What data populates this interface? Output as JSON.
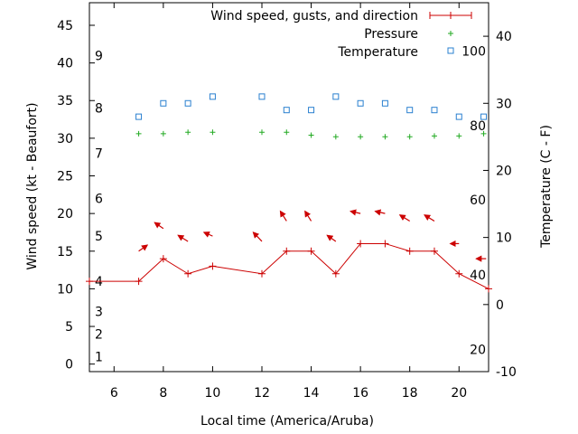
{
  "chart_data": {
    "type": "line",
    "xlabel": "Local time (America/Aruba)",
    "ylabel_left": "Wind speed (kt - Beaufort)",
    "ylabel_right": "Temperature (C - F)",
    "xlim": [
      5.0,
      21.2
    ],
    "ylim_left": [
      -1,
      48
    ],
    "ylim_right": [
      -10,
      45
    ],
    "x_ticks": [
      6,
      8,
      10,
      12,
      14,
      16,
      18,
      20
    ],
    "y_ticks_left": [
      0,
      5,
      10,
      15,
      20,
      25,
      30,
      35,
      40,
      45
    ],
    "y_ticks_right": [
      -10,
      0,
      10,
      20,
      30,
      40
    ],
    "beaufort_labels": [
      {
        "label": "1",
        "kt": 1
      },
      {
        "label": "2",
        "kt": 4
      },
      {
        "label": "3",
        "kt": 7
      },
      {
        "label": "4",
        "kt": 11
      },
      {
        "label": "5",
        "kt": 17
      },
      {
        "label": "6",
        "kt": 22
      },
      {
        "label": "7",
        "kt": 28
      },
      {
        "label": "8",
        "kt": 34
      },
      {
        "label": "9",
        "kt": 41
      }
    ],
    "fahrenheit_labels": [
      {
        "label": "20",
        "c": -6.7
      },
      {
        "label": "40",
        "c": 4.4
      },
      {
        "label": "60",
        "c": 15.6
      },
      {
        "label": "80",
        "c": 26.7
      },
      {
        "label": "100",
        "c": 37.8
      }
    ],
    "legend": {
      "position": "top-right",
      "entries": [
        "Wind speed, gusts, and direction",
        "Pressure",
        "Temperature"
      ]
    },
    "colors": {
      "wind": "#cc0000",
      "pressure": "#22aa22",
      "temperature": "#2a80d0"
    },
    "series": [
      {
        "name": "Wind speed, gusts, and direction",
        "axis": "left",
        "x": [
          5.0,
          7,
          8,
          9,
          10,
          12,
          13,
          14,
          15,
          16,
          17,
          18,
          19,
          20,
          21.2
        ],
        "values": [
          11,
          11,
          14,
          12,
          13,
          12,
          15,
          15,
          12,
          16,
          16,
          15,
          15,
          12,
          10
        ]
      },
      {
        "name": "Wind direction arrows",
        "axis": "left",
        "x": [
          7,
          8,
          9,
          10,
          12,
          13,
          14,
          15,
          16,
          17,
          18,
          19,
          20,
          21.1
        ],
        "values": [
          15,
          18,
          16.3,
          17,
          16.3,
          19,
          19,
          16.3,
          20,
          20,
          19,
          19,
          16,
          14
        ],
        "dx": [
          0.35,
          -0.35,
          -0.4,
          -0.35,
          -0.35,
          -0.25,
          -0.25,
          -0.35,
          -0.4,
          -0.4,
          -0.4,
          -0.4,
          -0.35,
          -0.4
        ],
        "dy": [
          0.8,
          0.8,
          0.8,
          0.5,
          1.2,
          1.3,
          1.3,
          0.8,
          0.3,
          0.3,
          0.8,
          0.8,
          0,
          0
        ]
      },
      {
        "name": "Pressure",
        "axis": "left",
        "x": [
          7,
          8,
          9,
          10,
          12,
          13,
          14,
          15,
          16,
          17,
          18,
          19,
          20,
          21
        ],
        "values": [
          30.6,
          30.6,
          30.8,
          30.8,
          30.8,
          30.8,
          30.4,
          30.2,
          30.2,
          30.2,
          30.2,
          30.3,
          30.3,
          30.6
        ]
      },
      {
        "name": "Temperature",
        "axis": "right",
        "x": [
          7,
          8,
          9,
          10,
          12,
          13,
          14,
          15,
          16,
          17,
          18,
          19,
          20,
          21
        ],
        "values": [
          28,
          30,
          30,
          31,
          31,
          29,
          29,
          31,
          30,
          30,
          29,
          29,
          28,
          28
        ]
      }
    ]
  }
}
